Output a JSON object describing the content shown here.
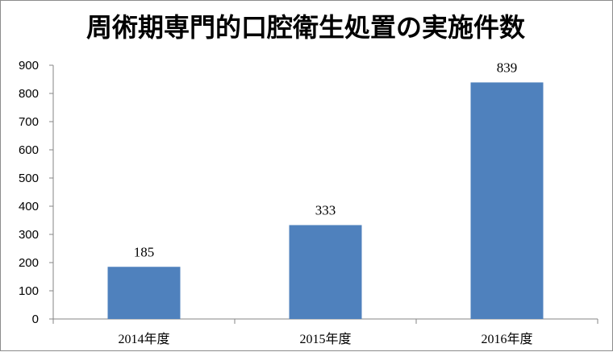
{
  "chart_data": {
    "type": "bar",
    "title": "周術期専門的口腔衛生処置の実施件数",
    "categories": [
      "2014年度",
      "2015年度",
      "2016年度"
    ],
    "values": [
      185,
      333,
      839
    ],
    "ylim": [
      0,
      900
    ],
    "yticks": [
      0,
      100,
      200,
      300,
      400,
      500,
      600,
      700,
      800,
      900
    ],
    "xlabel": "",
    "ylabel": "",
    "grid": false,
    "legend": "none",
    "bar_color": "#4f81bd",
    "axis_color": "#868686"
  }
}
